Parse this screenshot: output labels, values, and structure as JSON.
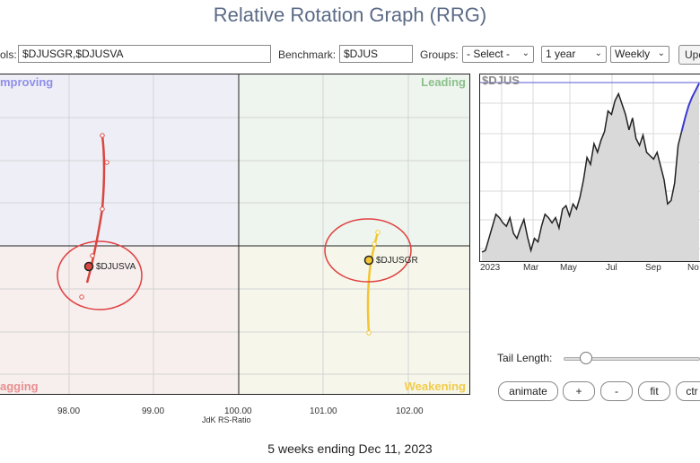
{
  "title": "Relative Rotation Graph (RRG)",
  "controls": {
    "symbols_label": "ols:",
    "symbols_value": "$DJUSGR,$DJUSVA",
    "benchmark_label": "Benchmark:",
    "benchmark_value": "$DJUS",
    "groups_label": "Groups:",
    "groups_value": "- Select -",
    "period_value": "1 year",
    "interval_value": "Weekly",
    "update_label": "Upd"
  },
  "quadrants": {
    "improving": "mproving",
    "leading": "Leading",
    "lagging": "agging",
    "weakening": "Weakening",
    "colors": {
      "improving": "#8f8fe8",
      "leading": "#8cc08c",
      "lagging": "#e88f8f",
      "weakening": "#f2cc4a"
    }
  },
  "x_axis": {
    "label": "JdK RS-Ratio",
    "ticks": [
      "98.00",
      "99.00",
      "100.00",
      "101.00",
      "102.00"
    ]
  },
  "series": [
    {
      "symbol": "$DJUSVA",
      "label": "$DJUSVA",
      "color": "#d9473f"
    },
    {
      "symbol": "$DJUSGR",
      "label": "$DJUSGR",
      "color": "#f2c531"
    }
  ],
  "price_chart": {
    "symbol_label": "$DJUS",
    "x_labels": [
      "2023",
      "Mar",
      "May",
      "Jul",
      "Sep",
      "No"
    ],
    "values": [
      30,
      31,
      38,
      45,
      52,
      50,
      47,
      45,
      50,
      41,
      38,
      44,
      49,
      39,
      31,
      38,
      36,
      45,
      52,
      50,
      47,
      50,
      44,
      55,
      57,
      51,
      58,
      55,
      62,
      72,
      85,
      81,
      93,
      88,
      95,
      100,
      112,
      110,
      118,
      122,
      116,
      110,
      101,
      108,
      96,
      92,
      98,
      88,
      86,
      84,
      88,
      80,
      72,
      58,
      60,
      70,
      92,
      100,
      108,
      115,
      120,
      124,
      128
    ]
  },
  "tail": {
    "label": "Tail Length:",
    "value_fraction": 0.16
  },
  "buttons": {
    "animate": "animate",
    "plus": "+",
    "minus": "-",
    "fit": "fit",
    "ctr": "ctr"
  },
  "footer": "5 weeks ending Dec 11, 2023"
}
